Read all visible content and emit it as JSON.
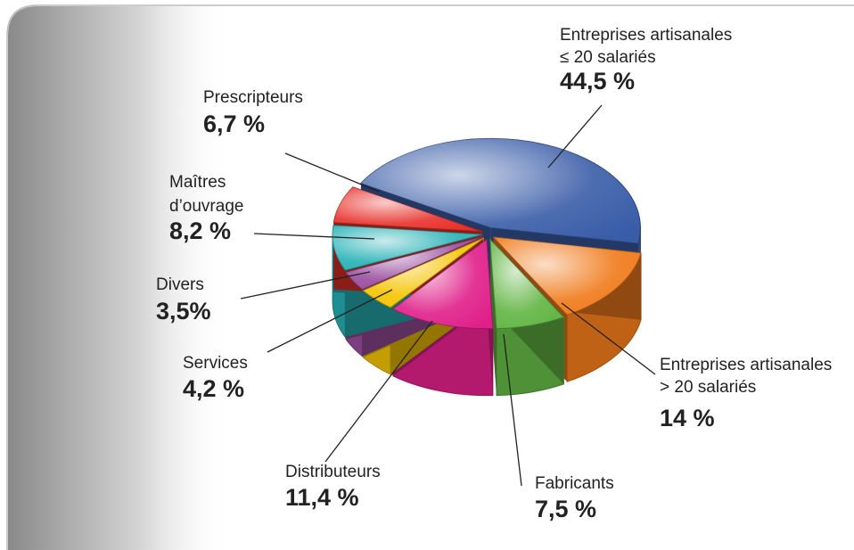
{
  "chart_data": {
    "type": "pie",
    "categories": [
      [
        "Entreprises artisanales",
        "≤ 20 salariés"
      ],
      [
        "Entreprises artisanales",
        "> 20 salariés"
      ],
      [
        "Fabricants"
      ],
      [
        "Distributeurs"
      ],
      [
        "Services"
      ],
      [
        "Divers"
      ],
      [
        "Maîtres",
        "d’ouvrage"
      ],
      [
        "Prescripteurs"
      ]
    ],
    "values": [
      44.5,
      14,
      7.5,
      11.4,
      4.2,
      3.5,
      8.2,
      6.7
    ],
    "value_labels": [
      "44,5 %",
      "14 %",
      "7,5 %",
      "11,4 %",
      "4,2 %",
      "3,5%",
      "8,2 %",
      "6,7 %"
    ],
    "colors": [
      "#3a5da8",
      "#f07a1a",
      "#62b544",
      "#e0208a",
      "#f5c400",
      "#9a4e9f",
      "#27b2b6",
      "#e8302a"
    ]
  }
}
